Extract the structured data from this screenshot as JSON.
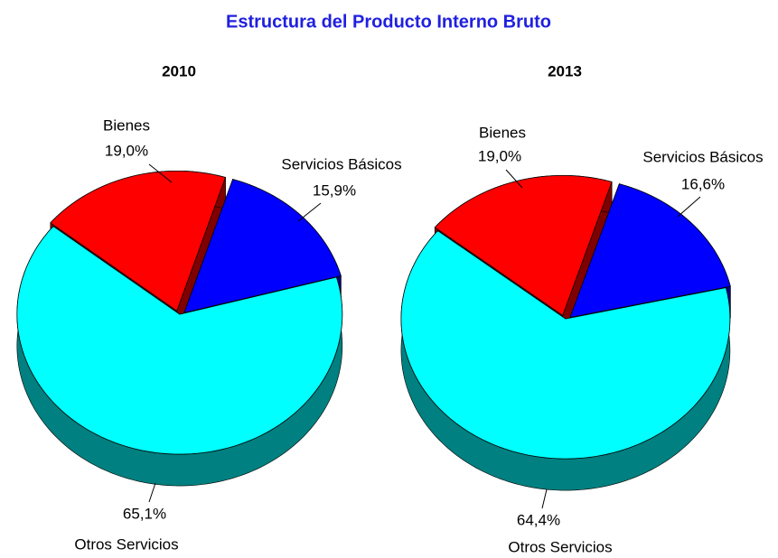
{
  "title": "Estructura del Producto Interno Bruto",
  "chart_data": [
    {
      "type": "pie",
      "title": "2010",
      "categories": [
        "Bienes",
        "Servicios Básicos",
        "Otros Servicios"
      ],
      "values": [
        19.0,
        15.9,
        65.1
      ],
      "value_labels": [
        "19,0%",
        "15,9%",
        "65,1%"
      ],
      "colors": [
        "#ff0000",
        "#0000ff",
        "#00ffff"
      ]
    },
    {
      "type": "pie",
      "title": "2013",
      "categories": [
        "Bienes",
        "Servicios Básicos",
        "Otros Servicios"
      ],
      "values": [
        19.0,
        16.6,
        64.4
      ],
      "value_labels": [
        "19,0%",
        "16,6%",
        "64,4%"
      ],
      "colors": [
        "#ff0000",
        "#0000ff",
        "#00ffff"
      ]
    }
  ]
}
